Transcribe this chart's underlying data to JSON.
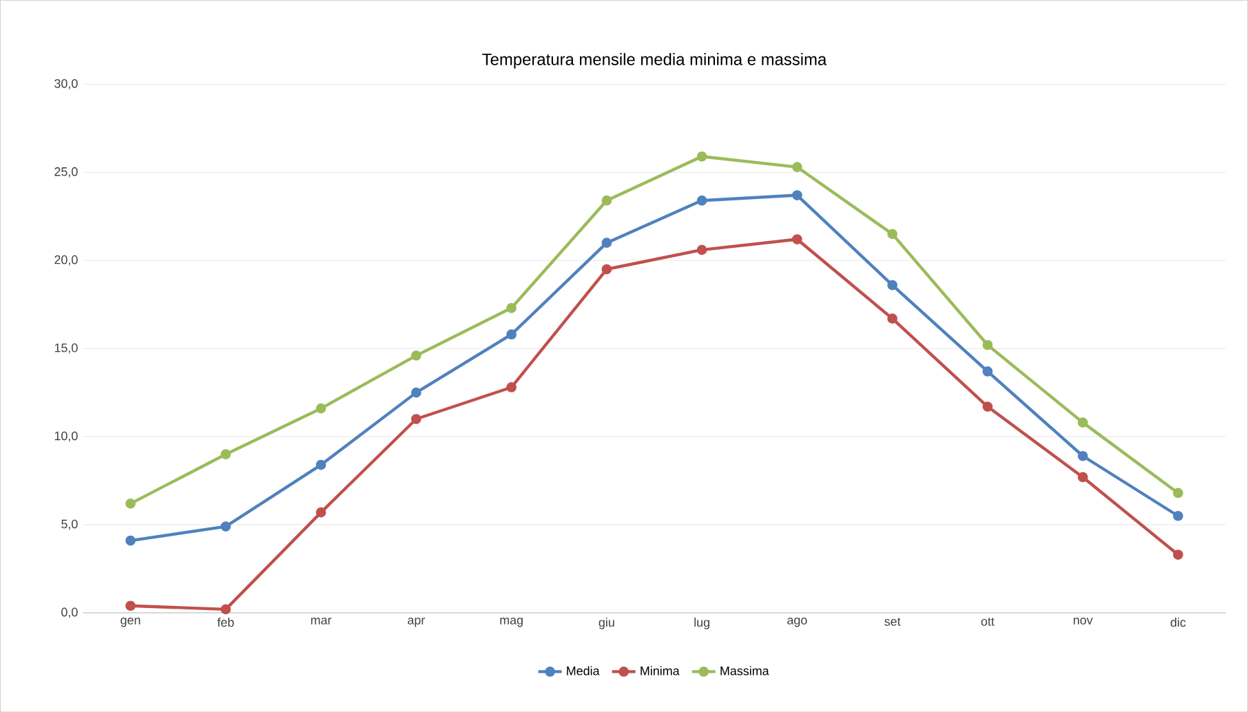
{
  "chart_data": {
    "type": "line",
    "title": "Temperatura mensile media minima e massima",
    "categories": [
      "gen",
      "feb",
      "mar",
      "apr",
      "mag",
      "giu",
      "lug",
      "ago",
      "set",
      "ott",
      "nov",
      "dic"
    ],
    "series": [
      {
        "name": "Media",
        "color": "#4f81bd",
        "values": [
          4.1,
          4.9,
          8.4,
          12.5,
          15.8,
          21.0,
          23.4,
          23.7,
          18.6,
          13.7,
          8.9,
          5.5
        ]
      },
      {
        "name": "Minima",
        "color": "#c0504d",
        "values": [
          0.4,
          0.2,
          5.7,
          11.0,
          12.8,
          19.5,
          20.6,
          21.2,
          16.7,
          11.7,
          7.7,
          3.3
        ]
      },
      {
        "name": "Massima",
        "color": "#9bbb59",
        "values": [
          6.2,
          9.0,
          11.6,
          14.6,
          17.3,
          23.4,
          25.9,
          25.3,
          21.5,
          15.2,
          10.8,
          6.8
        ]
      }
    ],
    "ylim": [
      0,
      30
    ],
    "yticks": [
      {
        "value": 0,
        "label": "0,0"
      },
      {
        "value": 5,
        "label": "5,0"
      },
      {
        "value": 10,
        "label": "10,0"
      },
      {
        "value": 15,
        "label": "15,0"
      },
      {
        "value": 20,
        "label": "20,0"
      },
      {
        "value": 25,
        "label": "25,0"
      },
      {
        "value": 30,
        "label": "30,0"
      }
    ],
    "grid": "y",
    "legend": "bottom",
    "marker": "circle",
    "line_style": "solid"
  }
}
